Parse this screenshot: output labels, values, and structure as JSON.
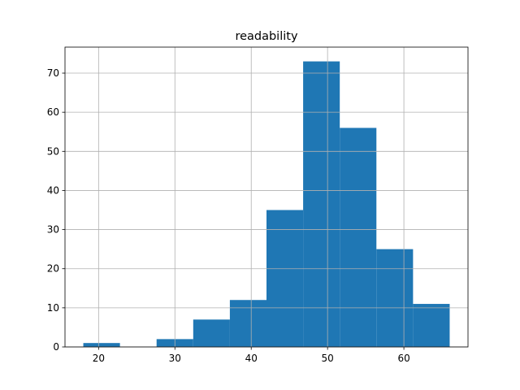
{
  "chart_data": {
    "type": "histogram",
    "title": "readability",
    "bins": [
      18,
      22.8,
      27.6,
      32.4,
      37.2,
      42,
      46.8,
      51.6,
      56.4,
      61.2,
      66
    ],
    "values": [
      1,
      0,
      2,
      7,
      12,
      35,
      73,
      56,
      25,
      11
    ],
    "color": "#1f77b4",
    "xlim": [
      15.6,
      68.4
    ],
    "xticks": [
      20,
      30,
      40,
      50,
      60
    ],
    "ylim": [
      0,
      76.65
    ],
    "yticks": [
      0,
      10,
      20,
      30,
      40,
      50,
      60,
      70
    ],
    "grid": true
  }
}
